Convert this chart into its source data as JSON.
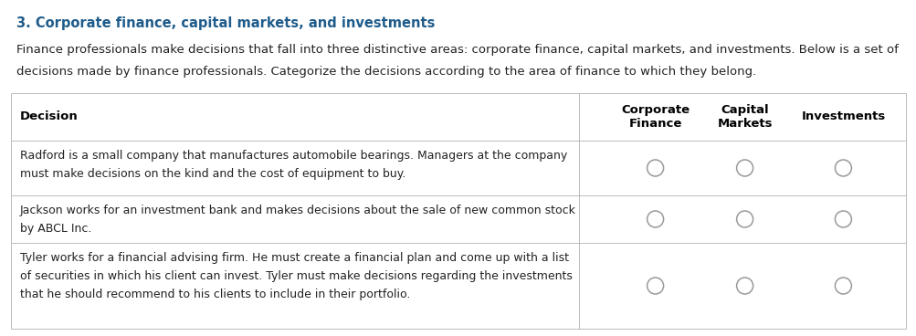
{
  "title": "3. Corporate finance, capital markets, and investments",
  "title_color": "#1F5C8B",
  "title_fontsize": 10.5,
  "body_line1": "Finance professionals make decisions that fall into three distinctive areas: corporate finance, capital markets, and investments. Below is a set of",
  "body_line2": "decisions made by finance professionals. Categorize the decisions according to the area of finance to which they belong.",
  "body_fontsize": 9.5,
  "background_color": "#ffffff",
  "table_header": [
    "Decision",
    "Corporate\nFinance",
    "Capital\nMarkets",
    "Investments"
  ],
  "rows": [
    "Radford is a small company that manufactures automobile bearings. Managers at the company\nmust make decisions on the kind and the cost of equipment to buy.",
    "Jackson works for an investment bank and makes decisions about the sale of new common stock\nby ABCL Inc.",
    "Tyler works for a financial advising firm. He must create a financial plan and come up with a list\nof securities in which his client can invest. Tyler must make decisions regarding the investments\nthat he should recommend to his clients to include in their portfolio."
  ],
  "header_text_color": "#000000",
  "row_text_color": "#222222",
  "table_border_color": "#bbbbbb",
  "circle_color": "#999999",
  "text_fontsize": 9.0,
  "header_fontsize": 9.5
}
